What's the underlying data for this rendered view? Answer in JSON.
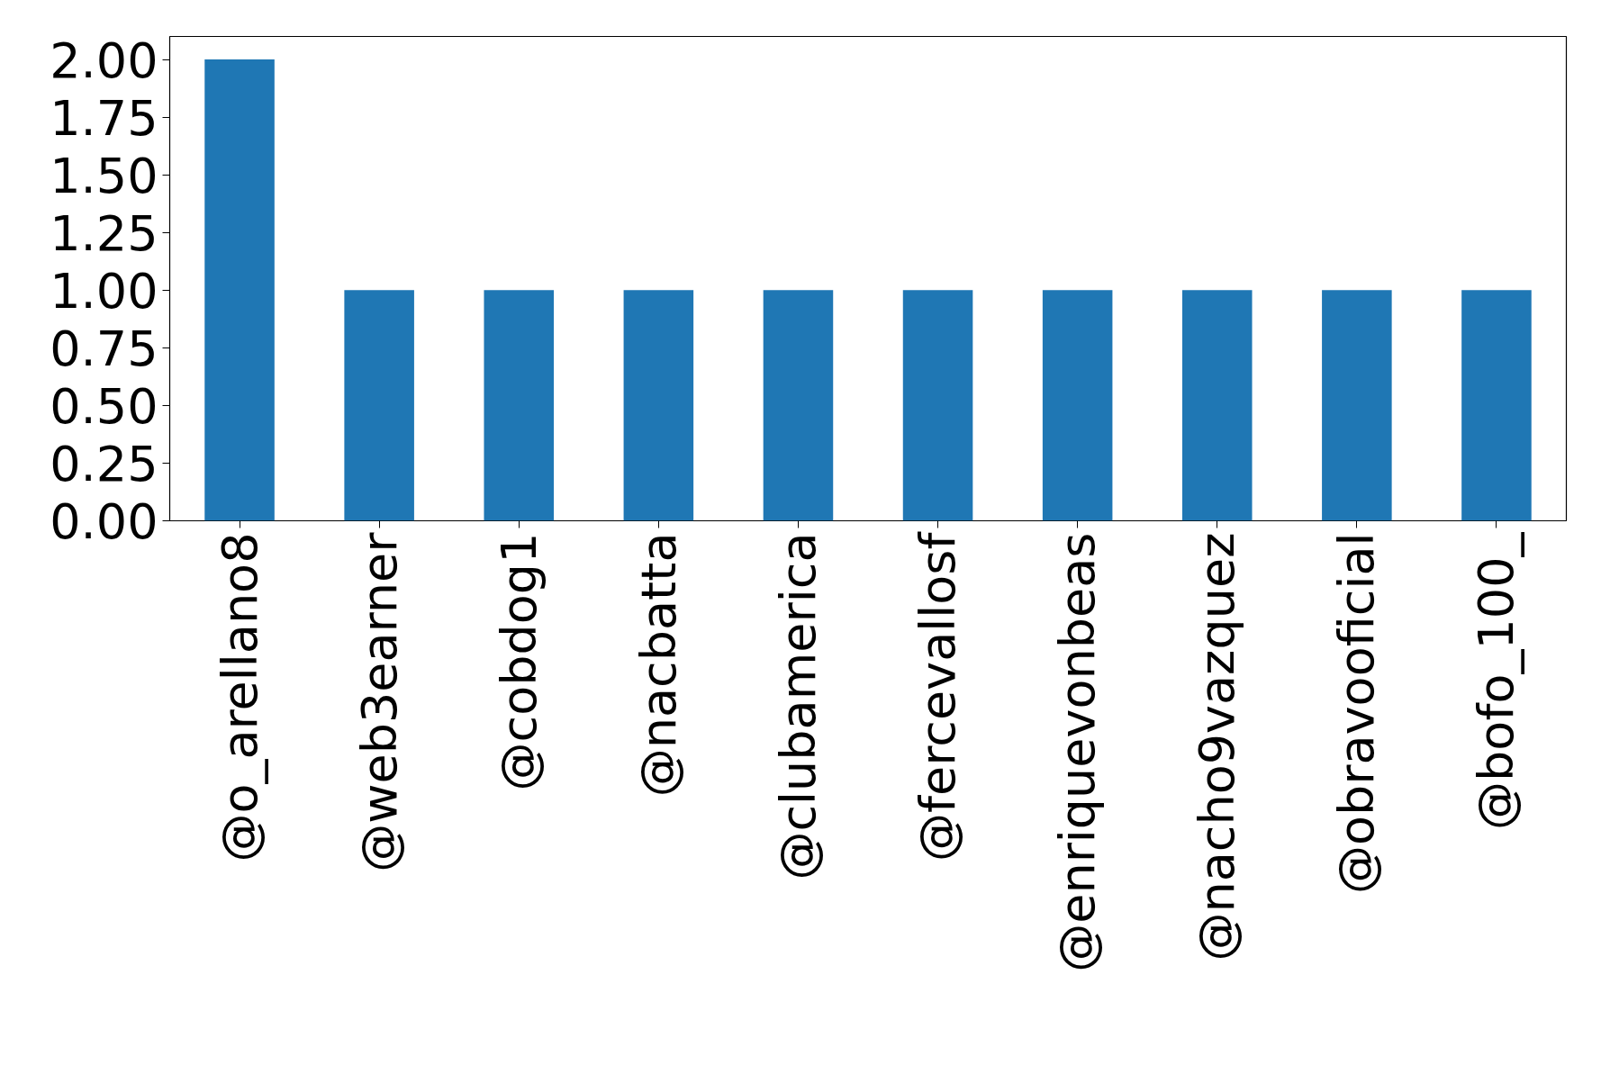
{
  "chart_data": {
    "type": "bar",
    "categories": [
      "@o_arellano8",
      "@web3earner",
      "@cobdog1",
      "@nacbatta",
      "@clubamerica",
      "@fercevallosf",
      "@enriquevonbeas",
      "@nacho9vazquez",
      "@obravooficial",
      "@bofo_100_"
    ],
    "values": [
      2,
      1,
      1,
      1,
      1,
      1,
      1,
      1,
      1,
      1
    ],
    "color": "#1f77b4",
    "ylim": [
      0,
      2.1
    ],
    "yticks": [
      {
        "value": 0,
        "label": "0.00"
      },
      {
        "value": 0.25,
        "label": "0.25"
      },
      {
        "value": 0.5,
        "label": "0.50"
      },
      {
        "value": 0.75,
        "label": "0.75"
      },
      {
        "value": 1,
        "label": "1.00"
      },
      {
        "value": 1.25,
        "label": "1.25"
      },
      {
        "value": 1.5,
        "label": "1.50"
      },
      {
        "value": 1.75,
        "label": "1.75"
      },
      {
        "value": 2,
        "label": "2.00"
      }
    ],
    "grid": false
  }
}
